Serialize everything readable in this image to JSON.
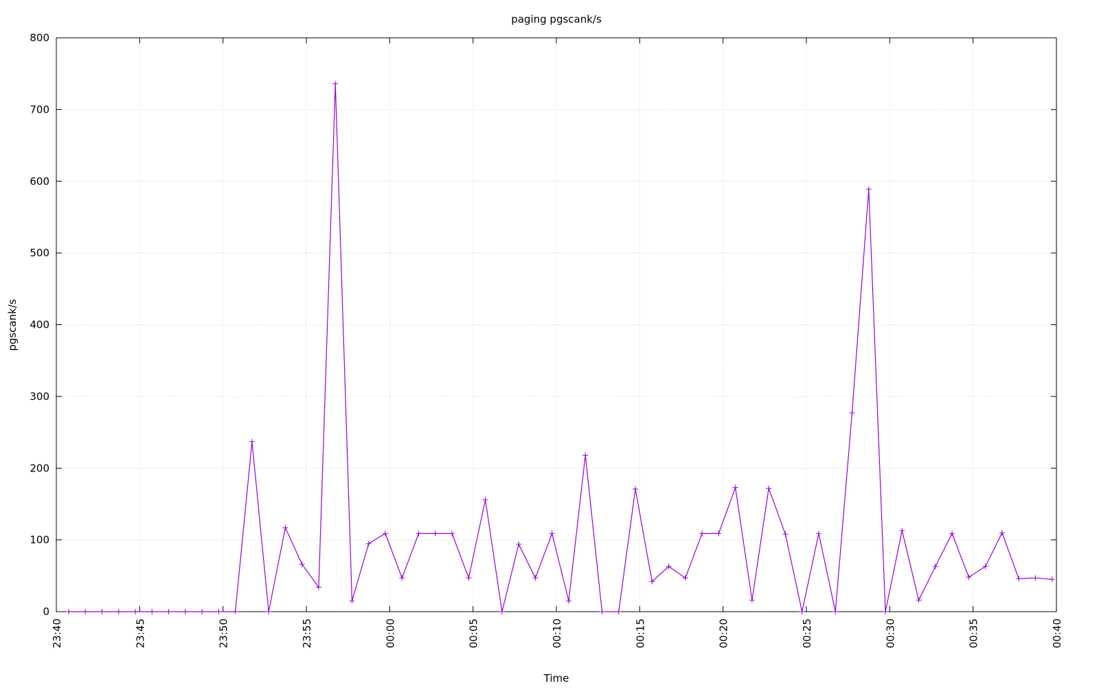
{
  "chart_data": {
    "type": "line",
    "title": "paging  pgscank/s",
    "x_label": "Time",
    "y_label": "pgscank/s",
    "x": [
      "23:40",
      "23:41",
      "23:42",
      "23:43",
      "23:44",
      "23:45",
      "23:46",
      "23:47",
      "23:48",
      "23:49",
      "23:50",
      "23:51",
      "23:52",
      "23:53",
      "23:54",
      "23:55",
      "23:56",
      "23:57",
      "23:58",
      "23:59",
      "00:00",
      "00:01",
      "00:02",
      "00:03",
      "00:04",
      "00:05",
      "00:06",
      "00:07",
      "00:08",
      "00:09",
      "00:10",
      "00:11",
      "00:12",
      "00:13",
      "00:14",
      "00:15",
      "00:16",
      "00:17",
      "00:18",
      "00:19",
      "00:20",
      "00:21",
      "00:22",
      "00:23",
      "00:24",
      "00:25",
      "00:26",
      "00:27",
      "00:28",
      "00:29",
      "00:30",
      "00:31",
      "00:32",
      "00:33",
      "00:34",
      "00:35",
      "00:36",
      "00:37",
      "00:38",
      "00:39"
    ],
    "series": [
      {
        "name": "pgscank/s",
        "color": "#9400d3",
        "values": [
          0,
          0,
          0,
          0,
          0,
          0,
          0,
          0,
          0,
          0,
          0,
          237,
          0,
          117,
          66,
          34,
          736,
          15,
          95,
          109,
          47,
          109,
          109,
          109,
          47,
          156,
          0,
          94,
          47,
          109,
          15,
          218,
          0,
          0,
          171,
          42,
          63,
          47,
          109,
          109,
          173,
          16,
          172,
          108,
          0,
          109,
          0,
          277,
          589,
          0,
          113,
          16,
          63,
          109,
          48,
          63,
          110,
          46,
          47,
          45
        ]
      }
    ],
    "xlim": [
      "23:40",
      "00:40"
    ],
    "xticks": [
      "23:40",
      "23:45",
      "23:50",
      "23:55",
      "00:00",
      "00:05",
      "00:10",
      "00:15",
      "00:20",
      "00:25",
      "00:30",
      "00:35",
      "00:40"
    ],
    "ylim": [
      0,
      800
    ],
    "yticks": [
      0,
      100,
      200,
      300,
      400,
      500,
      600,
      700,
      800
    ],
    "grid": true
  }
}
